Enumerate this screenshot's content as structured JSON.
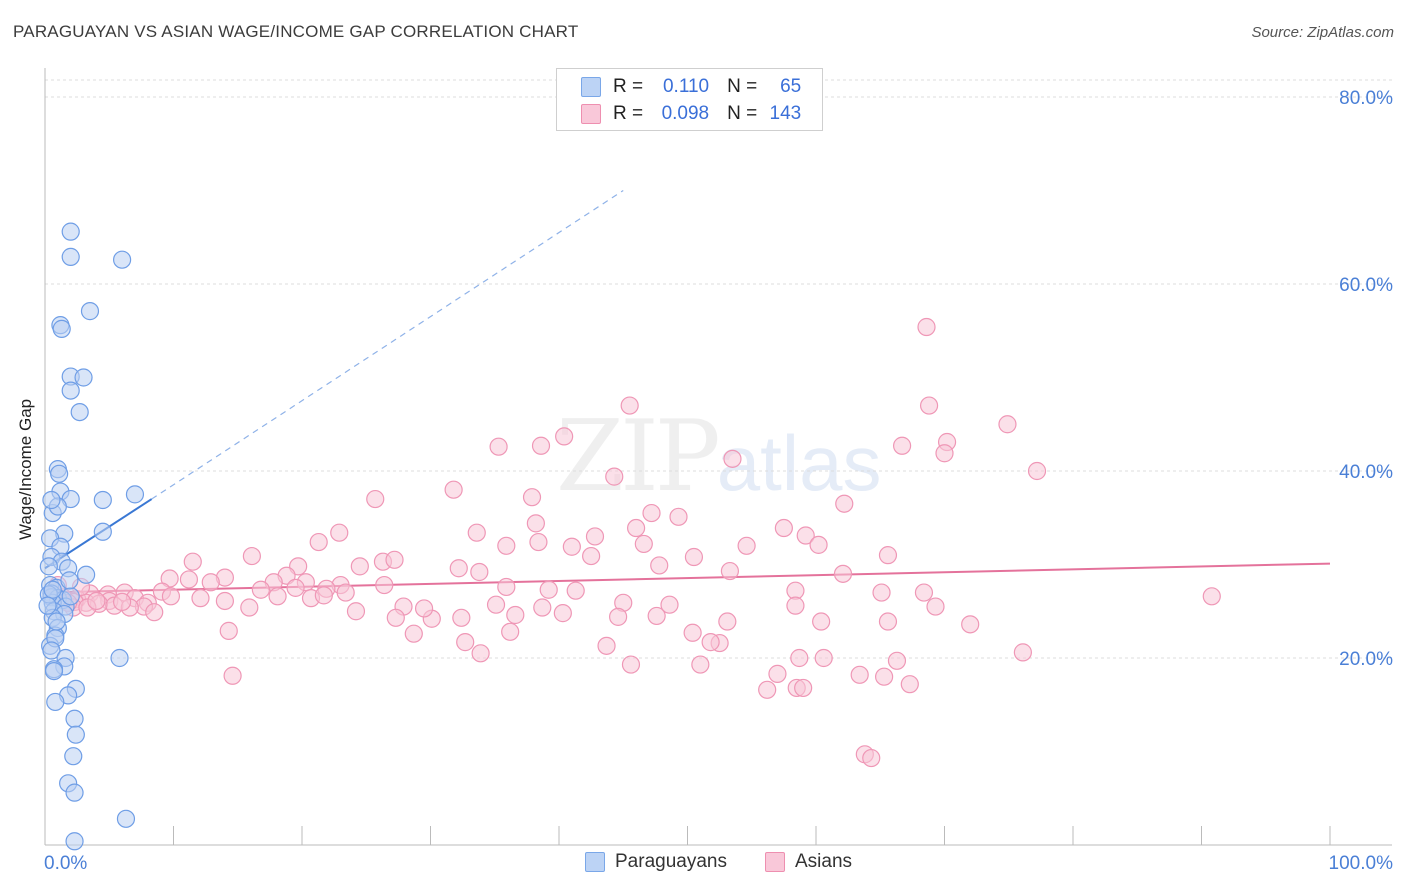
{
  "title": "PARAGUAYAN VS ASIAN WAGE/INCOME GAP CORRELATION CHART",
  "source": "Source: ZipAtlas.com",
  "watermark": {
    "zip": "ZIP",
    "atlas": "atlas"
  },
  "stats": [
    {
      "r_label": "R =",
      "r_value": "0.110",
      "n_label": "N =",
      "n_value": "65",
      "color": "#7aa7e8",
      "fill": "#bcd3f5"
    },
    {
      "r_label": "R =",
      "r_value": "0.098",
      "n_label": "N =",
      "n_value": "143",
      "color": "#ee8fb0",
      "fill": "#f9c8d9"
    }
  ],
  "legend": [
    {
      "label": "Paraguayans",
      "color": "#7aa7e8",
      "fill": "#bcd3f5"
    },
    {
      "label": "Asians",
      "color": "#ee8fb0",
      "fill": "#f9c8d9"
    }
  ],
  "chart_data": {
    "type": "scatter",
    "title": "PARAGUAYAN VS ASIAN WAGE/INCOME GAP CORRELATION CHART",
    "xlabel": "",
    "ylabel": "Wage/Income Gap",
    "xlim": [
      0,
      100
    ],
    "ylim": [
      0,
      83
    ],
    "x_tick_labels": [
      "0.0%",
      "100.0%"
    ],
    "y_ticks": [
      20,
      40,
      60,
      80
    ],
    "y_tick_labels": [
      "20.0%",
      "40.0%",
      "60.0%",
      "80.0%"
    ],
    "grid": true,
    "legend_position": "bottom-center",
    "series": [
      {
        "name": "Paraguayans",
        "color": "#6f9ee6",
        "fill": "#b9d0f3",
        "trend": {
          "x": [
            0,
            8.3
          ],
          "y": [
            29.6,
            37.0
          ],
          "extended_to": [
            45,
            70
          ],
          "style": "solid-then-dashed"
        },
        "points": [
          [
            2.0,
            65.6
          ],
          [
            2.0,
            62.9
          ],
          [
            6.0,
            62.6
          ],
          [
            3.5,
            57.1
          ],
          [
            1.2,
            55.6
          ],
          [
            1.3,
            55.2
          ],
          [
            2.0,
            50.1
          ],
          [
            3.0,
            50.0
          ],
          [
            2.0,
            48.6
          ],
          [
            2.7,
            46.3
          ],
          [
            1.0,
            40.2
          ],
          [
            1.1,
            39.7
          ],
          [
            1.2,
            37.8
          ],
          [
            2.0,
            37.0
          ],
          [
            4.5,
            36.9
          ],
          [
            7.0,
            37.5
          ],
          [
            0.6,
            35.5
          ],
          [
            1.0,
            36.2
          ],
          [
            0.5,
            36.9
          ],
          [
            1.5,
            33.3
          ],
          [
            0.4,
            32.8
          ],
          [
            4.5,
            33.5
          ],
          [
            1.2,
            31.9
          ],
          [
            0.5,
            30.8
          ],
          [
            1.3,
            30.3
          ],
          [
            0.3,
            29.8
          ],
          [
            1.8,
            29.6
          ],
          [
            3.2,
            28.9
          ],
          [
            0.4,
            27.8
          ],
          [
            0.9,
            27.5
          ],
          [
            0.5,
            26.9
          ],
          [
            0.5,
            26.5
          ],
          [
            1.0,
            26.4
          ],
          [
            1.4,
            26.2
          ],
          [
            0.6,
            25.9
          ],
          [
            1.6,
            25.5
          ],
          [
            2.0,
            26.6
          ],
          [
            0.7,
            25.0
          ],
          [
            1.5,
            24.7
          ],
          [
            0.6,
            24.3
          ],
          [
            1.0,
            23.2
          ],
          [
            0.8,
            22.4
          ],
          [
            0.4,
            21.3
          ],
          [
            0.8,
            22.1
          ],
          [
            0.5,
            20.8
          ],
          [
            1.6,
            20.0
          ],
          [
            5.8,
            20.0
          ],
          [
            1.5,
            19.1
          ],
          [
            0.7,
            18.8
          ],
          [
            0.7,
            18.6
          ],
          [
            2.4,
            16.7
          ],
          [
            1.8,
            16.0
          ],
          [
            0.8,
            15.3
          ],
          [
            2.3,
            13.5
          ],
          [
            2.4,
            11.8
          ],
          [
            2.2,
            9.5
          ],
          [
            1.8,
            6.6
          ],
          [
            2.3,
            5.6
          ],
          [
            6.3,
            2.8
          ],
          [
            2.3,
            0.4
          ],
          [
            0.3,
            26.8
          ],
          [
            0.6,
            27.3
          ],
          [
            1.9,
            28.3
          ],
          [
            0.2,
            25.6
          ],
          [
            0.9,
            23.9
          ]
        ]
      },
      {
        "name": "Asians",
        "color": "#ef97b6",
        "fill": "#f8c6d7",
        "trend": {
          "x": [
            0,
            100
          ],
          "y": [
            27.0,
            30.1
          ],
          "style": "solid"
        },
        "points": [
          [
            68.6,
            55.4
          ],
          [
            45.5,
            47.0
          ],
          [
            68.8,
            47.0
          ],
          [
            74.9,
            45.0
          ],
          [
            40.4,
            43.7
          ],
          [
            35.3,
            42.6
          ],
          [
            38.6,
            42.7
          ],
          [
            66.7,
            42.7
          ],
          [
            70.2,
            43.1
          ],
          [
            70.0,
            41.9
          ],
          [
            53.5,
            41.3
          ],
          [
            77.2,
            40.0
          ],
          [
            44.3,
            39.4
          ],
          [
            31.8,
            38.0
          ],
          [
            37.9,
            37.2
          ],
          [
            25.7,
            37.0
          ],
          [
            62.2,
            36.5
          ],
          [
            47.2,
            35.5
          ],
          [
            49.3,
            35.1
          ],
          [
            38.2,
            34.4
          ],
          [
            46.0,
            33.9
          ],
          [
            57.5,
            33.9
          ],
          [
            33.6,
            33.4
          ],
          [
            22.9,
            33.4
          ],
          [
            42.8,
            33.0
          ],
          [
            59.2,
            33.1
          ],
          [
            21.3,
            32.4
          ],
          [
            38.4,
            32.4
          ],
          [
            35.9,
            32.0
          ],
          [
            41.0,
            31.9
          ],
          [
            54.6,
            32.0
          ],
          [
            46.6,
            32.2
          ],
          [
            50.5,
            30.8
          ],
          [
            60.2,
            32.1
          ],
          [
            65.6,
            31.0
          ],
          [
            42.5,
            30.9
          ],
          [
            16.1,
            30.9
          ],
          [
            11.5,
            30.3
          ],
          [
            26.3,
            30.3
          ],
          [
            27.2,
            30.5
          ],
          [
            47.8,
            29.9
          ],
          [
            24.5,
            29.8
          ],
          [
            19.7,
            29.8
          ],
          [
            32.2,
            29.6
          ],
          [
            33.8,
            29.2
          ],
          [
            53.3,
            29.3
          ],
          [
            62.1,
            29.0
          ],
          [
            18.8,
            28.8
          ],
          [
            9.7,
            28.5
          ],
          [
            11.2,
            28.4
          ],
          [
            14.0,
            28.6
          ],
          [
            17.8,
            28.1
          ],
          [
            20.3,
            28.1
          ],
          [
            23.0,
            27.8
          ],
          [
            26.4,
            27.8
          ],
          [
            12.9,
            28.1
          ],
          [
            9.1,
            27.1
          ],
          [
            16.8,
            27.3
          ],
          [
            19.5,
            27.5
          ],
          [
            21.9,
            27.4
          ],
          [
            23.4,
            27.0
          ],
          [
            35.9,
            27.6
          ],
          [
            39.2,
            27.3
          ],
          [
            41.3,
            27.2
          ],
          [
            58.4,
            27.2
          ],
          [
            65.1,
            27.0
          ],
          [
            68.4,
            27.0
          ],
          [
            90.8,
            26.6
          ],
          [
            3.5,
            26.9
          ],
          [
            4.9,
            26.8
          ],
          [
            6.2,
            27.0
          ],
          [
            7.0,
            26.4
          ],
          [
            9.8,
            26.6
          ],
          [
            18.1,
            26.6
          ],
          [
            20.7,
            26.4
          ],
          [
            14.0,
            26.1
          ],
          [
            5.0,
            26.1
          ],
          [
            2.5,
            26.3
          ],
          [
            3.2,
            25.9
          ],
          [
            1.4,
            26.5
          ],
          [
            2.3,
            26.0
          ],
          [
            4.2,
            25.8
          ],
          [
            5.4,
            25.6
          ],
          [
            8.0,
            25.9
          ],
          [
            2.2,
            25.4
          ],
          [
            3.3,
            25.4
          ],
          [
            7.7,
            25.5
          ],
          [
            6.6,
            25.4
          ],
          [
            8.5,
            24.9
          ],
          [
            15.9,
            25.4
          ],
          [
            27.9,
            25.5
          ],
          [
            35.1,
            25.7
          ],
          [
            38.7,
            25.4
          ],
          [
            45.0,
            25.9
          ],
          [
            48.6,
            25.7
          ],
          [
            58.4,
            25.6
          ],
          [
            69.3,
            25.5
          ],
          [
            24.2,
            25.0
          ],
          [
            27.3,
            24.3
          ],
          [
            30.1,
            24.2
          ],
          [
            32.4,
            24.3
          ],
          [
            36.6,
            24.6
          ],
          [
            40.3,
            24.8
          ],
          [
            44.6,
            24.4
          ],
          [
            29.5,
            25.3
          ],
          [
            47.6,
            24.5
          ],
          [
            53.1,
            23.9
          ],
          [
            60.4,
            23.9
          ],
          [
            65.6,
            23.9
          ],
          [
            72.0,
            23.6
          ],
          [
            14.3,
            22.9
          ],
          [
            28.7,
            22.6
          ],
          [
            36.2,
            22.8
          ],
          [
            50.4,
            22.7
          ],
          [
            32.7,
            21.7
          ],
          [
            43.7,
            21.3
          ],
          [
            52.5,
            21.6
          ],
          [
            51.8,
            21.7
          ],
          [
            33.9,
            20.5
          ],
          [
            60.6,
            20.0
          ],
          [
            76.1,
            20.6
          ],
          [
            66.3,
            19.7
          ],
          [
            45.6,
            19.3
          ],
          [
            51.0,
            19.3
          ],
          [
            57.0,
            18.3
          ],
          [
            63.4,
            18.2
          ],
          [
            14.6,
            18.1
          ],
          [
            65.3,
            18.0
          ],
          [
            58.5,
            16.8
          ],
          [
            59.0,
            16.8
          ],
          [
            67.3,
            17.2
          ],
          [
            56.2,
            16.6
          ],
          [
            58.7,
            20.0
          ],
          [
            63.8,
            9.7
          ],
          [
            64.3,
            9.3
          ],
          [
            0.8,
            26.8
          ],
          [
            1.0,
            27.8
          ],
          [
            2.8,
            27.6
          ],
          [
            4.0,
            26.1
          ],
          [
            12.1,
            26.4
          ],
          [
            1.8,
            25.9
          ],
          [
            6.0,
            26.0
          ],
          [
            21.7,
            26.7
          ]
        ]
      }
    ]
  }
}
